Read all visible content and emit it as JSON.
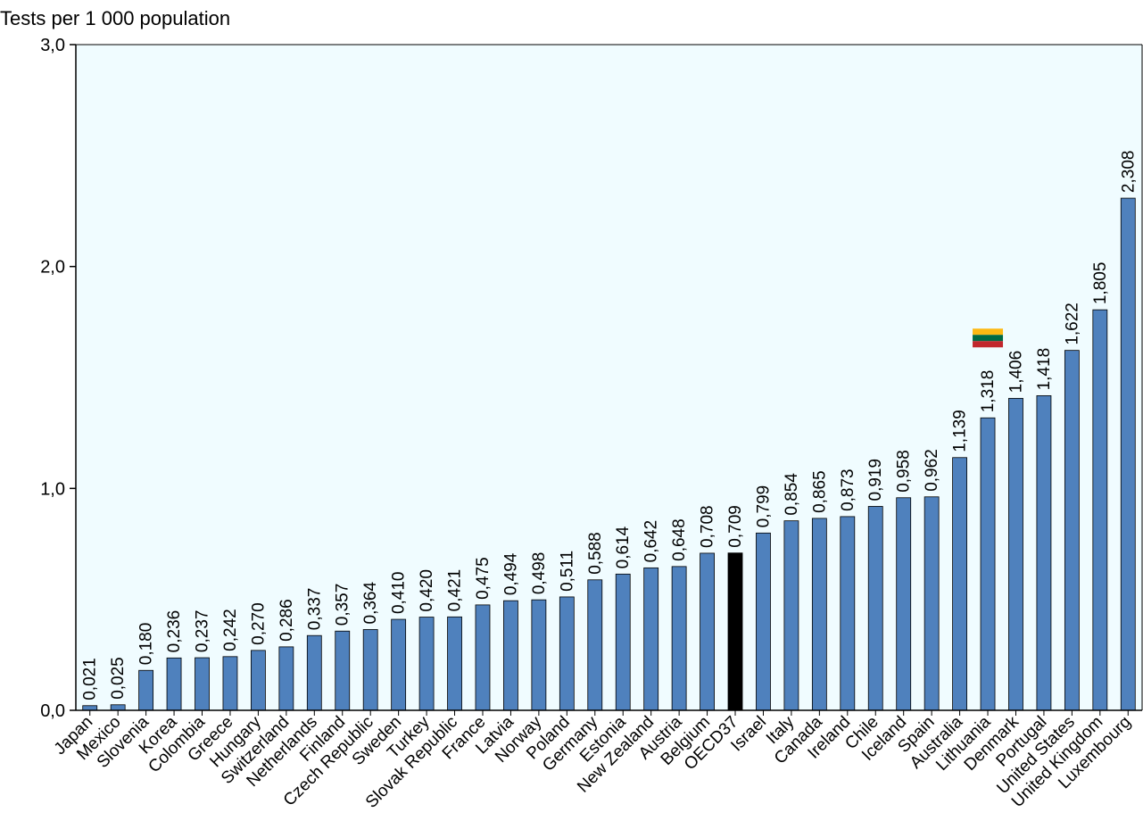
{
  "colors": {
    "plot_background": "#F0FCFF",
    "bar": "#4F81BD",
    "highlight_bar": "#000000",
    "axis": "#000000",
    "flag_lithuania": [
      "#FDB913",
      "#006A44",
      "#C1272D"
    ]
  },
  "chart_data": {
    "type": "bar",
    "title": "Tests per 1 000 population",
    "xlabel": "",
    "ylabel": "",
    "ylim": [
      0,
      3
    ],
    "yticks": [
      0,
      1,
      2,
      3
    ],
    "ytick_labels": [
      "0,0",
      "1,0",
      "2,0",
      "3,0"
    ],
    "grid": false,
    "legend": "none",
    "categories": [
      "Japan",
      "Mexico",
      "Slovenia",
      "Korea",
      "Colombia",
      "Greece",
      "Hungary",
      "Switzerland",
      "Netherlands",
      "Finland",
      "Czech Republic",
      "Sweden",
      "Turkey",
      "Slovak Republic",
      "France",
      "Latvia",
      "Norway",
      "Poland",
      "Germany",
      "Estonia",
      "New Zealand",
      "Austria",
      "Belgium",
      "OECD37",
      "Israel",
      "Italy",
      "Canada",
      "Ireland",
      "Chile",
      "Iceland",
      "Spain",
      "Australia",
      "Lithuania",
      "Denmark",
      "Portugal",
      "United States",
      "United Kingdom",
      "Luxembourg"
    ],
    "values": [
      0.021,
      0.025,
      0.18,
      0.236,
      0.237,
      0.242,
      0.27,
      0.286,
      0.337,
      0.357,
      0.364,
      0.41,
      0.42,
      0.421,
      0.475,
      0.494,
      0.498,
      0.511,
      0.588,
      0.614,
      0.642,
      0.648,
      0.708,
      0.709,
      0.799,
      0.854,
      0.865,
      0.873,
      0.919,
      0.958,
      0.962,
      1.139,
      1.318,
      1.406,
      1.418,
      1.622,
      1.805,
      2.308
    ],
    "value_labels": [
      "0,021",
      "0,025",
      "0,180",
      "0,236",
      "0,237",
      "0,242",
      "0,270",
      "0,286",
      "0,337",
      "0,357",
      "0,364",
      "0,410",
      "0,420",
      "0,421",
      "0,475",
      "0,494",
      "0,498",
      "0,511",
      "0,588",
      "0,614",
      "0,642",
      "0,648",
      "0,708",
      "0,709",
      "0,799",
      "0,854",
      "0,865",
      "0,873",
      "0,919",
      "0,958",
      "0,962",
      "1,139",
      "1,318",
      "1,406",
      "1,418",
      "1,622",
      "1,805",
      "2,308"
    ],
    "highlight": [
      "OECD37"
    ],
    "flag_marker": {
      "category": "Lithuania",
      "icon": "flag-lithuania-icon"
    }
  }
}
